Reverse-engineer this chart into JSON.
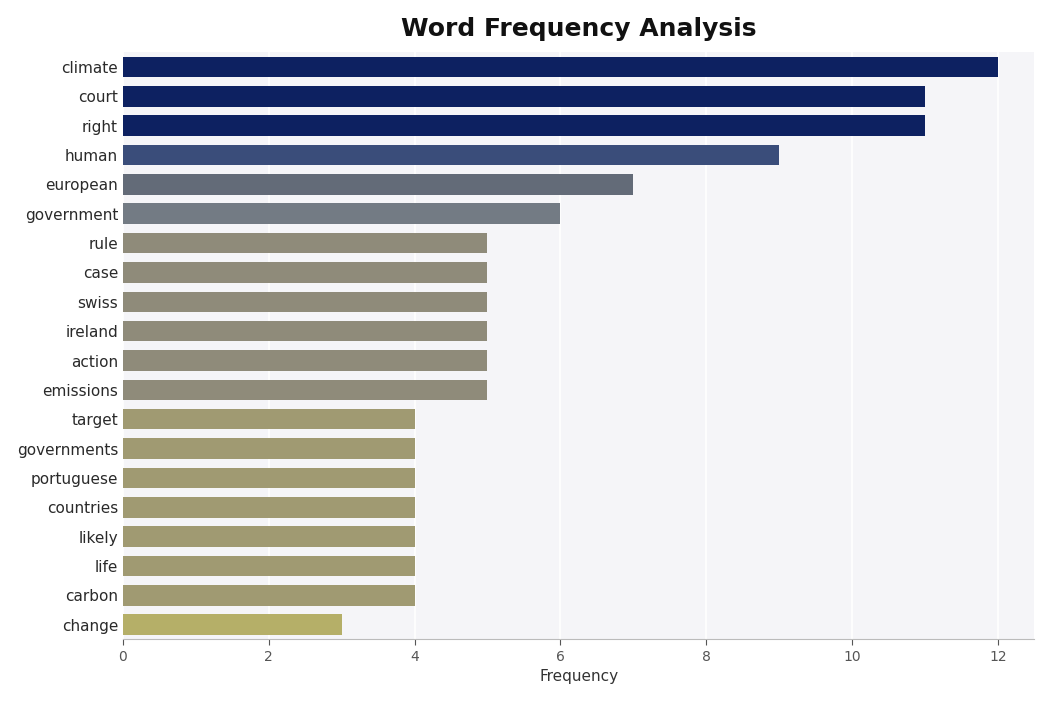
{
  "title": "Word Frequency Analysis",
  "words": [
    "climate",
    "court",
    "right",
    "human",
    "european",
    "government",
    "rule",
    "case",
    "swiss",
    "ireland",
    "action",
    "emissions",
    "target",
    "governments",
    "portuguese",
    "countries",
    "likely",
    "life",
    "carbon",
    "change"
  ],
  "values": [
    12,
    11,
    11,
    9,
    7,
    6,
    5,
    5,
    5,
    5,
    5,
    5,
    4,
    4,
    4,
    4,
    4,
    4,
    4,
    3
  ],
  "colors": [
    "#0d2161",
    "#0d2161",
    "#0d2161",
    "#3a4d7a",
    "#636b78",
    "#737b84",
    "#8f8b7a",
    "#8f8b7a",
    "#8f8b7a",
    "#8f8b7a",
    "#8f8b7a",
    "#8f8b7a",
    "#a09a72",
    "#a09a72",
    "#a09a72",
    "#a09a72",
    "#a09a72",
    "#a09a72",
    "#a09a72",
    "#b5af68"
  ],
  "xlim": [
    0,
    12.5
  ],
  "xlabel": "Frequency",
  "plot_background": "#f5f5f8",
  "figure_background": "#ffffff",
  "title_fontsize": 18,
  "label_fontsize": 11
}
